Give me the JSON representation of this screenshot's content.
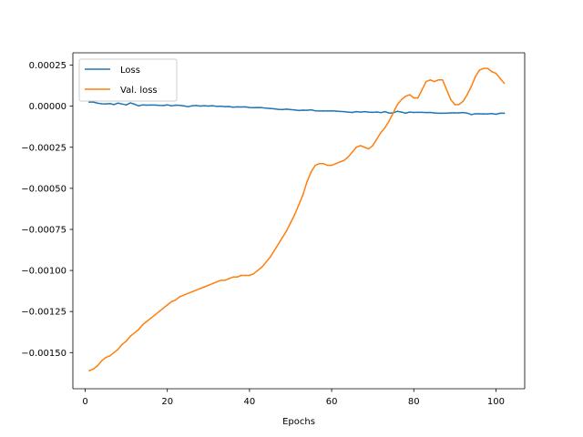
{
  "chart_data": {
    "type": "line",
    "title": "",
    "xlabel": "Epochs",
    "ylabel": "",
    "xlim": [
      -3.0,
      107.0
    ],
    "ylim": [
      -0.00172,
      0.000325
    ],
    "xticks": [
      0,
      20,
      40,
      60,
      80,
      100
    ],
    "xtick_labels": [
      "0",
      "20",
      "40",
      "60",
      "80",
      "100"
    ],
    "yticks": [
      0.00025,
      0.0,
      -0.00025,
      -0.0005,
      -0.00075,
      -0.001,
      -0.00125,
      -0.0015
    ],
    "ytick_labels": [
      "0.00025",
      "0.00000",
      "−0.00025",
      "−0.00050",
      "−0.00075",
      "−0.00100",
      "−0.00125",
      "−0.00150"
    ],
    "grid": false,
    "legend": {
      "position": "top-left",
      "entries": [
        "Loss",
        "Val. loss"
      ]
    },
    "series": [
      {
        "name": "Loss",
        "color": "#1f77b4",
        "x": [
          1,
          2,
          3,
          4,
          5,
          6,
          7,
          8,
          9,
          10,
          11,
          12,
          13,
          14,
          15,
          16,
          17,
          18,
          19,
          20,
          21,
          22,
          23,
          24,
          25,
          26,
          27,
          28,
          29,
          30,
          31,
          32,
          33,
          34,
          35,
          36,
          37,
          38,
          39,
          40,
          41,
          42,
          43,
          44,
          45,
          46,
          47,
          48,
          49,
          50,
          51,
          52,
          53,
          54,
          55,
          56,
          57,
          58,
          59,
          60,
          61,
          62,
          63,
          64,
          65,
          66,
          67,
          68,
          69,
          70,
          71,
          72,
          73,
          74,
          75,
          76,
          77,
          78,
          79,
          80,
          81,
          82,
          83,
          84,
          85,
          86,
          87,
          88,
          89,
          90,
          91,
          92,
          93,
          94,
          95,
          96,
          97,
          98,
          99,
          100,
          101,
          102
        ],
        "values": [
          2.5e-05,
          2.5e-05,
          1.8e-05,
          1.5e-05,
          1.4e-05,
          1.6e-05,
          1e-05,
          1.9e-05,
          1.3e-05,
          8e-06,
          2e-05,
          1.2e-05,
          2e-06,
          8e-06,
          6e-06,
          7e-06,
          7e-06,
          5e-06,
          4e-06,
          8e-06,
          2e-06,
          6e-06,
          5e-06,
          2e-06,
          -3e-06,
          2e-06,
          4e-06,
          1e-06,
          3e-06,
          1e-06,
          3e-06,
          -1e-06,
          0.0,
          -3e-06,
          -2e-06,
          -6e-06,
          -4e-06,
          -5e-06,
          -4e-06,
          -8e-06,
          -9e-06,
          -8e-06,
          -9e-06,
          -1.2e-05,
          -1.4e-05,
          -1.6e-05,
          -1.9e-05,
          -2.1e-05,
          -1.8e-05,
          -2.1e-05,
          -2.3e-05,
          -2.6e-05,
          -2.4e-05,
          -2.5e-05,
          -2.2e-05,
          -2.8e-05,
          -2.9e-05,
          -2.9e-05,
          -2.9e-05,
          -2.8e-05,
          -3e-05,
          -3.2e-05,
          -3.3e-05,
          -3.6e-05,
          -3.8e-05,
          -3.3e-05,
          -3.6e-05,
          -3.3e-05,
          -3.6e-05,
          -3.7e-05,
          -3.5e-05,
          -3.9e-05,
          -3.3e-05,
          -4.2e-05,
          -4.1e-05,
          -3.1e-05,
          -3.6e-05,
          -4.2e-05,
          -3.6e-05,
          -3.8e-05,
          -3.7e-05,
          -3.7e-05,
          -3.9e-05,
          -3.8e-05,
          -4.1e-05,
          -4.3e-05,
          -4.3e-05,
          -4.2e-05,
          -4.1e-05,
          -4.1e-05,
          -4.1e-05,
          -3.9e-05,
          -4.2e-05,
          -5.1e-05,
          -4.6e-05,
          -4.6e-05,
          -4.7e-05,
          -4.7e-05,
          -4.5e-05,
          -4.9e-05,
          -4.3e-05,
          -4.3e-05
        ]
      },
      {
        "name": "Val. loss",
        "color": "#ff7f0e",
        "x": [
          1,
          2,
          3,
          4,
          5,
          6,
          7,
          8,
          9,
          10,
          11,
          12,
          13,
          14,
          15,
          16,
          17,
          18,
          19,
          20,
          21,
          22,
          23,
          24,
          25,
          26,
          27,
          28,
          29,
          30,
          31,
          32,
          33,
          34,
          35,
          36,
          37,
          38,
          39,
          40,
          41,
          42,
          43,
          44,
          45,
          46,
          47,
          48,
          49,
          50,
          51,
          52,
          53,
          54,
          55,
          56,
          57,
          58,
          59,
          60,
          61,
          62,
          63,
          64,
          65,
          66,
          67,
          68,
          69,
          70,
          71,
          72,
          73,
          74,
          75,
          76,
          77,
          78,
          79,
          80,
          81,
          82,
          83,
          84,
          85,
          86,
          87,
          88,
          89,
          90,
          91,
          92,
          93,
          94,
          95,
          96,
          97,
          98,
          99,
          100,
          101,
          102
        ],
        "values": [
          -0.00161,
          -0.0016,
          -0.00158,
          -0.00155,
          -0.00153,
          -0.00152,
          -0.0015,
          -0.00148,
          -0.00145,
          -0.00143,
          -0.0014,
          -0.00138,
          -0.00136,
          -0.00133,
          -0.00131,
          -0.00129,
          -0.00127,
          -0.00125,
          -0.00123,
          -0.00121,
          -0.00119,
          -0.00118,
          -0.00116,
          -0.00115,
          -0.00114,
          -0.00113,
          -0.00112,
          -0.00111,
          -0.0011,
          -0.00109,
          -0.00108,
          -0.00107,
          -0.00106,
          -0.00106,
          -0.00105,
          -0.00104,
          -0.00104,
          -0.00103,
          -0.00103,
          -0.00103,
          -0.00102,
          -0.001,
          -0.00098,
          -0.00095,
          -0.00092,
          -0.00088,
          -0.00084,
          -0.0008,
          -0.00076,
          -0.00071,
          -0.00066,
          -0.0006,
          -0.00054,
          -0.00046,
          -0.0004,
          -0.00036,
          -0.00035,
          -0.00035,
          -0.00036,
          -0.00036,
          -0.00035,
          -0.00034,
          -0.00033,
          -0.00031,
          -0.00028,
          -0.00025,
          -0.00024,
          -0.00025,
          -0.00026,
          -0.00024,
          -0.0002,
          -0.00016,
          -0.00013,
          -9e-05,
          -4e-05,
          1e-05,
          4e-05,
          6e-05,
          7e-05,
          5e-05,
          5e-05,
          0.0001,
          0.00015,
          0.00016,
          0.00015,
          0.00016,
          0.00016,
          0.0001,
          4e-05,
          1e-05,
          1e-05,
          3e-05,
          7e-05,
          0.00012,
          0.00018,
          0.00022,
          0.00023,
          0.00023,
          0.00021,
          0.0002,
          0.00017,
          0.00014
        ]
      }
    ]
  }
}
